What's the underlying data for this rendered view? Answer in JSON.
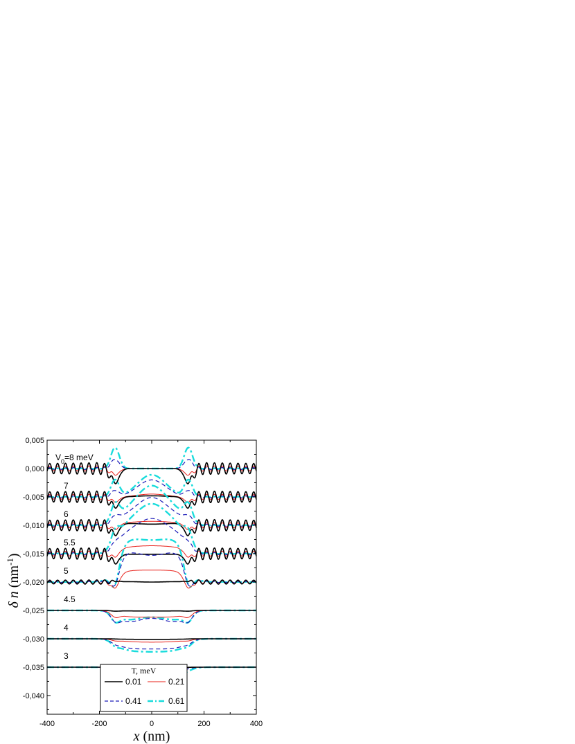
{
  "chart_data": {
    "type": "line",
    "xlabel": "x (nm)",
    "ylabel": "δ n (nm-1)",
    "xlim": [
      -400,
      400
    ],
    "ylim": [
      -0.0433,
      0.005
    ],
    "x_ticks": [
      "-400",
      "-200",
      "0",
      "200",
      "400"
    ],
    "x_tick_values": [
      -400,
      -200,
      0,
      200,
      400
    ],
    "y_ticks": [
      "0,005",
      "0,000",
      "-0,005",
      "-0,010",
      "-0,015",
      "-0,020",
      "-0,025",
      "-0,030",
      "-0,035",
      "-0,040"
    ],
    "y_tick_values": [
      0.005,
      0,
      -0.005,
      -0.01,
      -0.015,
      -0.02,
      -0.025,
      -0.03,
      -0.035,
      -0.04
    ],
    "legend": {
      "title": "T, meV",
      "placement": "bottom-center",
      "entries": [
        {
          "label": "0.01",
          "color": "#000000",
          "style": "solid"
        },
        {
          "label": "0.21",
          "color": "#e8201a",
          "style": "solid"
        },
        {
          "label": "0.41",
          "color": "#1a1ab8",
          "style": "dashed"
        },
        {
          "label": "0.61",
          "color": "#19dcdc",
          "style": "dash-dot"
        }
      ]
    },
    "curve_labels": [
      {
        "text": "V0=8 meV",
        "offset": 0.0
      },
      {
        "text": "7",
        "offset": -0.005
      },
      {
        "text": "6",
        "offset": -0.01
      },
      {
        "text": "5.5",
        "offset": -0.015
      },
      {
        "text": "5",
        "offset": -0.02
      },
      {
        "text": "4.5",
        "offset": -0.025
      },
      {
        "text": "4",
        "offset": -0.03
      },
      {
        "text": "3",
        "offset": -0.035
      }
    ],
    "groups": [
      {
        "V0": "8",
        "offset": 0.0,
        "wells": [
          0.0,
          0.0,
          0.0,
          0.0
        ],
        "center": [
          0.0,
          0.0,
          0.0,
          0.0
        ],
        "edge": [
          -0.0025,
          -0.0011,
          0.0016,
          0.0037
        ],
        "osc": [
          0.0011,
          0.0005,
          0.0002,
          5e-05
        ],
        "oscx": 4
      },
      {
        "V0": "7",
        "offset": -0.005,
        "wells": [
          -0.005,
          -0.005,
          -0.005,
          -0.005
        ],
        "center": [
          -0.0048,
          -0.0045,
          -0.002,
          -0.0011
        ],
        "edge": [
          -0.0018,
          -0.0009,
          0.0011,
          0.003
        ],
        "osc": [
          0.0011,
          0.0005,
          0.0002,
          5e-05
        ],
        "oscx": 4
      },
      {
        "V0": "6",
        "offset": -0.01,
        "wells": [
          -0.0096,
          -0.0095,
          -0.0082,
          -0.0073
        ],
        "center": [
          -0.0098,
          -0.0093,
          -0.0051,
          -0.003
        ],
        "edge": [
          -0.0018,
          -0.0009,
          0.0011,
          0.003
        ],
        "osc": [
          0.0011,
          0.0005,
          0.0002,
          5e-05
        ],
        "oscx": 4
      },
      {
        "V0": "5.5",
        "offset": -0.015,
        "wells": [
          -0.0151,
          -0.0138,
          -0.0111,
          -0.0094
        ],
        "center": [
          -0.0151,
          -0.0136,
          -0.0088,
          -0.0062
        ],
        "edge": [
          -0.0016,
          -0.001,
          0.0008,
          0.0024
        ],
        "osc": [
          0.0011,
          0.0005,
          0.0002,
          5e-05
        ],
        "oscx": 4
      },
      {
        "V0": "5",
        "offset": -0.02,
        "wells": [
          -0.0199,
          -0.0179,
          -0.0142,
          -0.012
        ],
        "center": [
          -0.02,
          -0.0179,
          -0.0153,
          -0.0126
        ],
        "edge": [
          0.0001,
          -0.0018,
          -0.0026,
          -0.0034
        ],
        "osc": [
          0.0004,
          0.0003,
          0.0001,
          3e-05
        ],
        "oscx": 4
      },
      {
        "V0": "4.5",
        "offset": -0.025,
        "wells": [
          -0.0251,
          -0.0262,
          -0.0275,
          -0.027
        ],
        "center": [
          -0.0251,
          -0.0262,
          -0.0264,
          -0.0262
        ],
        "edge": [
          -0.0001,
          -0.0008,
          -0.0012,
          -0.0014
        ],
        "osc": [
          0,
          0,
          0,
          0
        ],
        "oscx": 4
      },
      {
        "V0": "4",
        "offset": -0.03,
        "wells": [
          -0.0301,
          -0.0305,
          -0.0318,
          -0.0322
        ],
        "center": [
          -0.0301,
          -0.0306,
          -0.0318,
          -0.0323
        ],
        "edge": [
          0,
          -0.0002,
          -0.0004,
          -0.0006
        ],
        "osc": [
          0,
          0,
          0,
          0
        ],
        "oscx": 4
      },
      {
        "V0": "3",
        "offset": -0.035,
        "wells": [
          -0.0351,
          -0.0352,
          -0.0358,
          -0.0367
        ],
        "center": [
          -0.0351,
          -0.0352,
          -0.0358,
          -0.0367
        ],
        "edge": [
          0,
          0,
          0,
          -0.0001
        ],
        "osc": [
          0,
          0,
          0,
          0
        ],
        "oscx": 4
      }
    ],
    "grid": false
  }
}
